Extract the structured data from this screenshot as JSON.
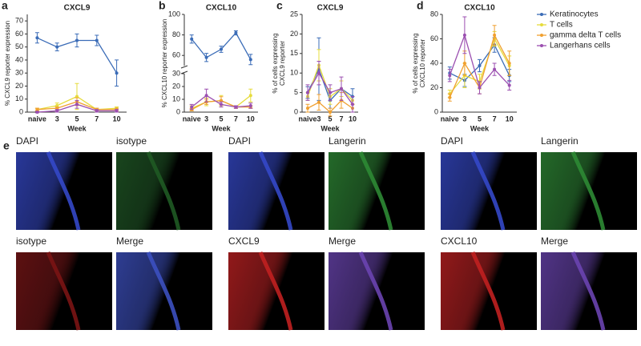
{
  "chart_data": [
    {
      "type": "line",
      "panel": "a",
      "title": "CXCL9",
      "xlabel": "Week",
      "ylabel": [
        "% CXCL9 reporter expression"
      ],
      "categories": [
        "naive",
        "3",
        "5",
        "7",
        "10"
      ],
      "ylim": [
        0,
        75
      ],
      "yticks": [
        0,
        10,
        20,
        30,
        40,
        50,
        60,
        70
      ],
      "series": [
        {
          "name": "Keratinocytes",
          "color": "#3b6cb7",
          "values": [
            57,
            50,
            55,
            55,
            30
          ],
          "errors": [
            4,
            3,
            5,
            4,
            10
          ]
        },
        {
          "name": "T cells",
          "color": "#e6dc3c",
          "values": [
            2,
            5,
            12,
            2,
            3
          ],
          "errors": [
            1,
            2,
            10,
            1,
            1
          ]
        },
        {
          "name": "gamma delta T cells",
          "color": "#f0a030",
          "values": [
            2,
            3,
            8,
            2,
            2
          ],
          "errors": [
            1,
            1,
            3,
            1,
            1
          ]
        },
        {
          "name": "Langerhans cells",
          "color": "#9b4fb0",
          "values": [
            0,
            1,
            6,
            1,
            1
          ],
          "errors": [
            0.5,
            1,
            3,
            1,
            1
          ]
        }
      ]
    },
    {
      "type": "line",
      "panel": "b",
      "title": "CXCL10",
      "xlabel": "Week",
      "ylabel": [
        "% CXCL10 reporter expression"
      ],
      "categories": [
        "naive",
        "3",
        "5",
        "7",
        "10"
      ],
      "ylim": [
        0,
        100
      ],
      "ybreak": [
        30,
        50
      ],
      "yticks": [
        0,
        10,
        20,
        30,
        60,
        80,
        100
      ],
      "series": [
        {
          "name": "Keratinocytes",
          "color": "#3b6cb7",
          "values": [
            76,
            58,
            66,
            82,
            56
          ],
          "errors": [
            4,
            4,
            3,
            2,
            5
          ]
        },
        {
          "name": "T cells",
          "color": "#e6dc3c",
          "values": [
            3,
            8,
            9,
            4,
            13
          ],
          "errors": [
            2,
            3,
            4,
            1,
            5
          ]
        },
        {
          "name": "gamma delta T cells",
          "color": "#f0a030",
          "values": [
            2,
            8,
            9,
            4,
            4
          ],
          "errors": [
            1,
            2,
            3,
            1,
            1
          ]
        },
        {
          "name": "Langerhans cells",
          "color": "#9b4fb0",
          "values": [
            4,
            13,
            6,
            4,
            5
          ],
          "errors": [
            2,
            5,
            2,
            1,
            2
          ]
        }
      ]
    },
    {
      "type": "line",
      "panel": "c",
      "title": "CXCL9",
      "xlabel": "Week",
      "ylabel": [
        "% of cells expressing",
        "CXCL9 reporter"
      ],
      "categories": [
        "naive",
        "3",
        "5",
        "7",
        "10"
      ],
      "ylim": [
        0,
        25
      ],
      "yticks": [
        0,
        5,
        10,
        15,
        20,
        25
      ],
      "series": [
        {
          "name": "Keratinocytes",
          "color": "#3b6cb7",
          "values": [
            5,
            11,
            3,
            6,
            4
          ],
          "errors": [
            1.5,
            8,
            2,
            2,
            2
          ]
        },
        {
          "name": "T cells",
          "color": "#e6dc3c",
          "values": [
            4,
            12,
            4,
            6,
            3
          ],
          "errors": [
            1,
            4,
            2,
            2,
            1
          ]
        },
        {
          "name": "gamma delta T cells",
          "color": "#f0a030",
          "values": [
            1,
            2.5,
            0,
            3,
            1
          ],
          "errors": [
            1,
            2,
            1,
            2,
            1
          ]
        },
        {
          "name": "Langerhans cells",
          "color": "#9b4fb0",
          "values": [
            5,
            10,
            5,
            6,
            2
          ],
          "errors": [
            2,
            3,
            2,
            3,
            2
          ]
        }
      ]
    },
    {
      "type": "line",
      "panel": "d",
      "title": "CXCL10",
      "xlabel": "Week",
      "ylabel": [
        "% of cells expressing",
        "CXCL10 reporter"
      ],
      "categories": [
        "naive",
        "3",
        "5",
        "7",
        "10"
      ],
      "ylim": [
        0,
        80
      ],
      "yticks": [
        0,
        20,
        40,
        60,
        80
      ],
      "series": [
        {
          "name": "Keratinocytes",
          "color": "#3b6cb7",
          "values": [
            32,
            26,
            38,
            55,
            30
          ],
          "errors": [
            5,
            5,
            5,
            6,
            5
          ]
        },
        {
          "name": "T cells",
          "color": "#e6dc3c",
          "values": [
            15,
            30,
            25,
            60,
            38
          ],
          "errors": [
            3,
            10,
            6,
            6,
            8
          ]
        },
        {
          "name": "gamma delta T cells",
          "color": "#f0a030",
          "values": [
            12,
            40,
            20,
            63,
            40
          ],
          "errors": [
            3,
            10,
            5,
            8,
            10
          ]
        },
        {
          "name": "Langerhans cells",
          "color": "#9b4fb0",
          "values": [
            30,
            63,
            20,
            35,
            22
          ],
          "errors": [
            5,
            15,
            5,
            5,
            4
          ]
        }
      ]
    }
  ],
  "panel_e": {
    "label": "e",
    "images": [
      {
        "label": "DAPI",
        "color": "#3448c8"
      },
      {
        "label": "isotype",
        "color": "#1f5a24"
      },
      {
        "label": "DAPI",
        "color": "#3448c8"
      },
      {
        "label": "Langerin",
        "color": "#2e8a34"
      },
      {
        "label": "DAPI",
        "color": "#3448c8"
      },
      {
        "label": "Langerin",
        "color": "#2e8a34"
      },
      {
        "label": "isotype",
        "color": "#7a1414"
      },
      {
        "label": "Merge",
        "color": "#3c50c0"
      },
      {
        "label": "CXCL9",
        "color": "#c02020"
      },
      {
        "label": "Merge",
        "color": "#6a44b0"
      },
      {
        "label": "CXCL10",
        "color": "#c02020"
      },
      {
        "label": "Merge",
        "color": "#6a44b0"
      }
    ]
  }
}
